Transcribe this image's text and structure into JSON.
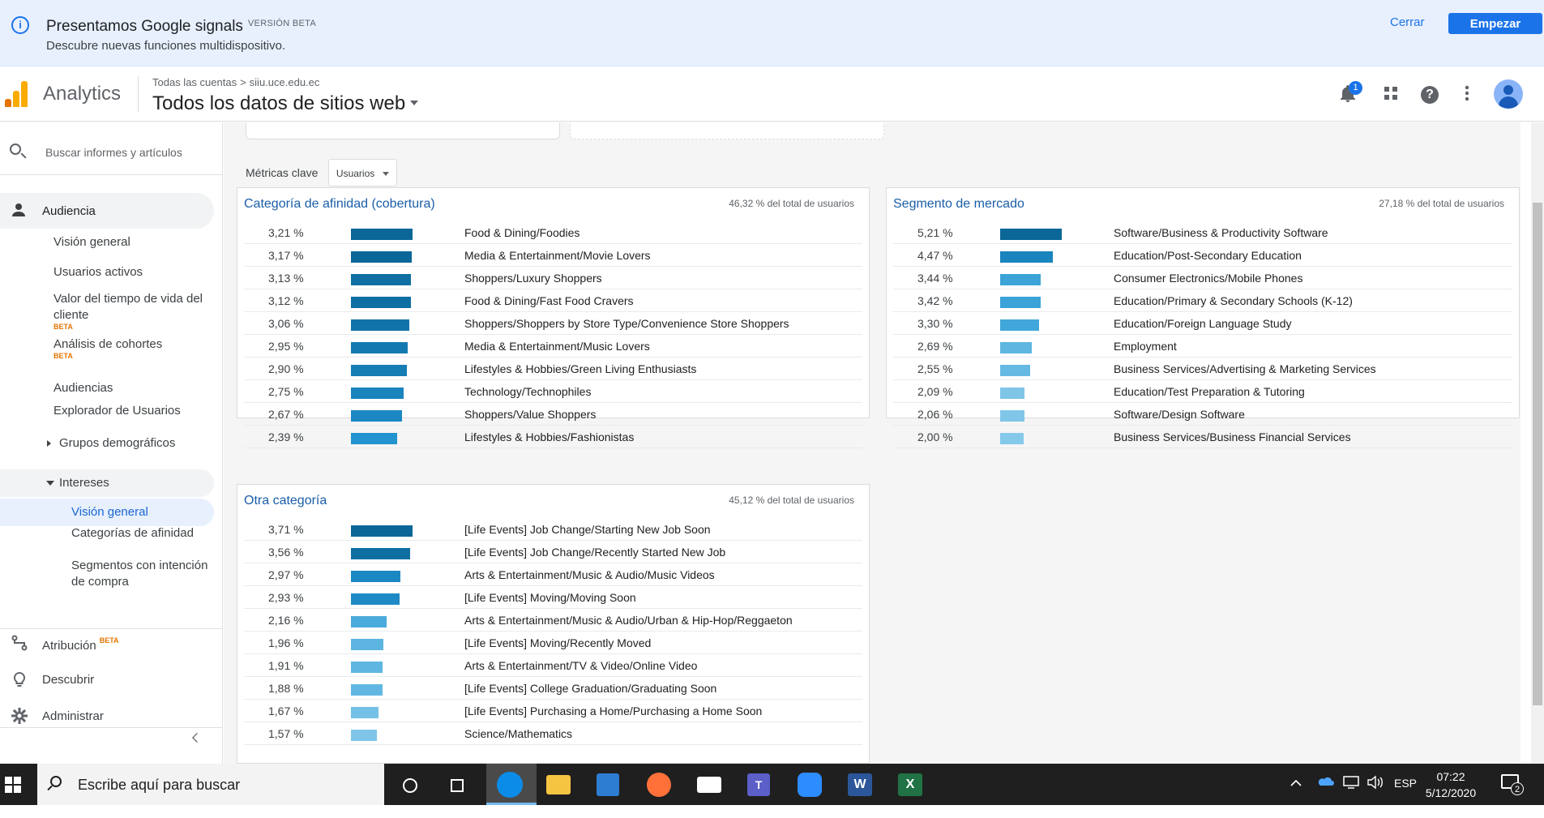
{
  "banner": {
    "title": "Presentamos Google signals",
    "beta": "VERSIÓN BETA",
    "subtitle": "Descubre nuevas funciones multidispositivo.",
    "close_label": "Cerrar",
    "start_label": "Empezar"
  },
  "header": {
    "app_name": "Analytics",
    "breadcrumb_1": "Todas las cuentas",
    "breadcrumb_sep": ">",
    "breadcrumb_2": "siiu.uce.edu.ec",
    "view_title": "Todos los datos de sitios web",
    "notification_count": "1",
    "icons": [
      "bell-icon",
      "apps-icon",
      "help-icon",
      "more-vert-icon",
      "avatar"
    ]
  },
  "sidebar": {
    "search_placeholder": "Buscar informes y artículos",
    "audiencia": "Audiencia",
    "items": [
      {
        "label": "Visión general"
      },
      {
        "label": "Usuarios activos"
      },
      {
        "label": "Valor del tiempo de vida del cliente",
        "beta": "BETA"
      },
      {
        "label": "Análisis de cohortes",
        "beta": "BETA"
      },
      {
        "label": "Audiencias"
      },
      {
        "label": "Explorador de Usuarios"
      },
      {
        "label": "Grupos demográficos"
      }
    ],
    "intereses": "Intereses",
    "intereses_items": [
      {
        "label": "Visión general"
      },
      {
        "label": "Categorías de afinidad"
      },
      {
        "label": "Segmentos con intención de compra"
      }
    ],
    "atribucion": "Atribución",
    "atribucion_beta": "BETA",
    "descubrir": "Descubrir",
    "administrar": "Administrar"
  },
  "main": {
    "metrics_label": "Métricas clave",
    "metrics_value": "Usuarios",
    "panels": {
      "affinity": {
        "title": "Categoría de afinidad (cobertura)",
        "pct": "46,32 % del total de usuarios",
        "rows": [
          {
            "value": "3,21 %",
            "category": "Food & Dining/Foodies",
            "fraction": 1.0,
            "color": "#0b6798"
          },
          {
            "value": "3,17 %",
            "category": "Media & Entertainment/Movie Lovers",
            "fraction": 0.988,
            "color": "#0b6798"
          },
          {
            "value": "3,13 %",
            "category": "Shoppers/Luxury Shoppers",
            "fraction": 0.975,
            "color": "#0f6fa3"
          },
          {
            "value": "3,12 %",
            "category": "Food & Dining/Fast Food Cravers",
            "fraction": 0.972,
            "color": "#0f6fa3"
          },
          {
            "value": "3,06 %",
            "category": "Shoppers/Shoppers by Store Type/Convenience Store Shoppers",
            "fraction": 0.953,
            "color": "#1273a8"
          },
          {
            "value": "2,95 %",
            "category": "Media & Entertainment/Music Lovers",
            "fraction": 0.919,
            "color": "#1479b0"
          },
          {
            "value": "2,90 %",
            "category": "Lifestyles & Hobbies/Green Living Enthusiasts",
            "fraction": 0.903,
            "color": "#157cb4"
          },
          {
            "value": "2,75 %",
            "category": "Technology/Technophiles",
            "fraction": 0.857,
            "color": "#1a84be"
          },
          {
            "value": "2,67 %",
            "category": "Shoppers/Value Shoppers",
            "fraction": 0.832,
            "color": "#1c88c3"
          },
          {
            "value": "2,39 %",
            "category": "Lifestyles & Hobbies/Fashionistas",
            "fraction": 0.745,
            "color": "#2394cf"
          }
        ]
      },
      "market": {
        "title": "Segmento de mercado",
        "pct": "27,18 % del total de usuarios",
        "rows": [
          {
            "value": "5,21 %",
            "category": "Software/Business & Productivity Software",
            "fraction": 1.0,
            "color": "#0b6798"
          },
          {
            "value": "4,47 %",
            "category": "Education/Post-Secondary Education",
            "fraction": 0.858,
            "color": "#1a84be"
          },
          {
            "value": "3,44 %",
            "category": "Consumer Electronics/Mobile Phones",
            "fraction": 0.66,
            "color": "#3ba3d8"
          },
          {
            "value": "3,42 %",
            "category": "Education/Primary & Secondary Schools (K-12)",
            "fraction": 0.656,
            "color": "#3ba3d8"
          },
          {
            "value": "3,30 %",
            "category": "Education/Foreign Language Study",
            "fraction": 0.633,
            "color": "#41a7da"
          },
          {
            "value": "2,69 %",
            "category": "Employment",
            "fraction": 0.516,
            "color": "#5eb6e1"
          },
          {
            "value": "2,55 %",
            "category": "Business Services/Advertising & Marketing Services",
            "fraction": 0.489,
            "color": "#65b9e3"
          },
          {
            "value": "2,09 %",
            "category": "Education/Test Preparation & Tutoring",
            "fraction": 0.401,
            "color": "#7fc5e8"
          },
          {
            "value": "2,06 %",
            "category": "Software/Design Software",
            "fraction": 0.395,
            "color": "#80c6e9"
          },
          {
            "value": "2,00 %",
            "category": "Business Services/Business Financial Services",
            "fraction": 0.384,
            "color": "#84c8ea"
          }
        ]
      },
      "other": {
        "title": "Otra categoría",
        "pct": "45,12 % del total de usuarios",
        "rows": [
          {
            "value": "3,71 %",
            "category": "[Life Events] Job Change/Starting New Job Soon",
            "fraction": 1.0,
            "color": "#0b6798"
          },
          {
            "value": "3,56 %",
            "category": "[Life Events] Job Change/Recently Started New Job",
            "fraction": 0.96,
            "color": "#0f6fa3"
          },
          {
            "value": "2,97 %",
            "category": "Arts & Entertainment/Music & Audio/Music Videos",
            "fraction": 0.8,
            "color": "#1c88c3"
          },
          {
            "value": "2,93 %",
            "category": "[Life Events] Moving/Moving Soon",
            "fraction": 0.79,
            "color": "#1e8ac5"
          },
          {
            "value": "2,16 %",
            "category": "Arts & Entertainment/Music & Audio/Urban & Hip-Hop/Reggaeton",
            "fraction": 0.582,
            "color": "#4aabdc"
          },
          {
            "value": "1,96 %",
            "category": "[Life Events] Moving/Recently Moved",
            "fraction": 0.528,
            "color": "#5cb4e0"
          },
          {
            "value": "1,91 %",
            "category": "Arts & Entertainment/TV & Video/Online Video",
            "fraction": 0.515,
            "color": "#5eb6e1"
          },
          {
            "value": "1,88 %",
            "category": "[Life Events] College Graduation/Graduating Soon",
            "fraction": 0.507,
            "color": "#62b7e2"
          },
          {
            "value": "1,67 %",
            "category": "[Life Events] Purchasing a Home/Purchasing a Home Soon",
            "fraction": 0.45,
            "color": "#74c0e6"
          },
          {
            "value": "1,57 %",
            "category": "Science/Mathematics",
            "fraction": 0.423,
            "color": "#7ec5e8"
          }
        ]
      }
    }
  },
  "taskbar": {
    "search_placeholder": "Escribe aquí para buscar",
    "lang": "ESP",
    "time": "07:22",
    "date": "5/12/2020",
    "notification_count": "2"
  },
  "colors": {
    "accent": "#1a73e8",
    "bar_dark": "#0b6798",
    "bar_light": "#84c8ea",
    "logo_orange": "#f9ab00",
    "logo_dark_orange": "#e37400"
  }
}
